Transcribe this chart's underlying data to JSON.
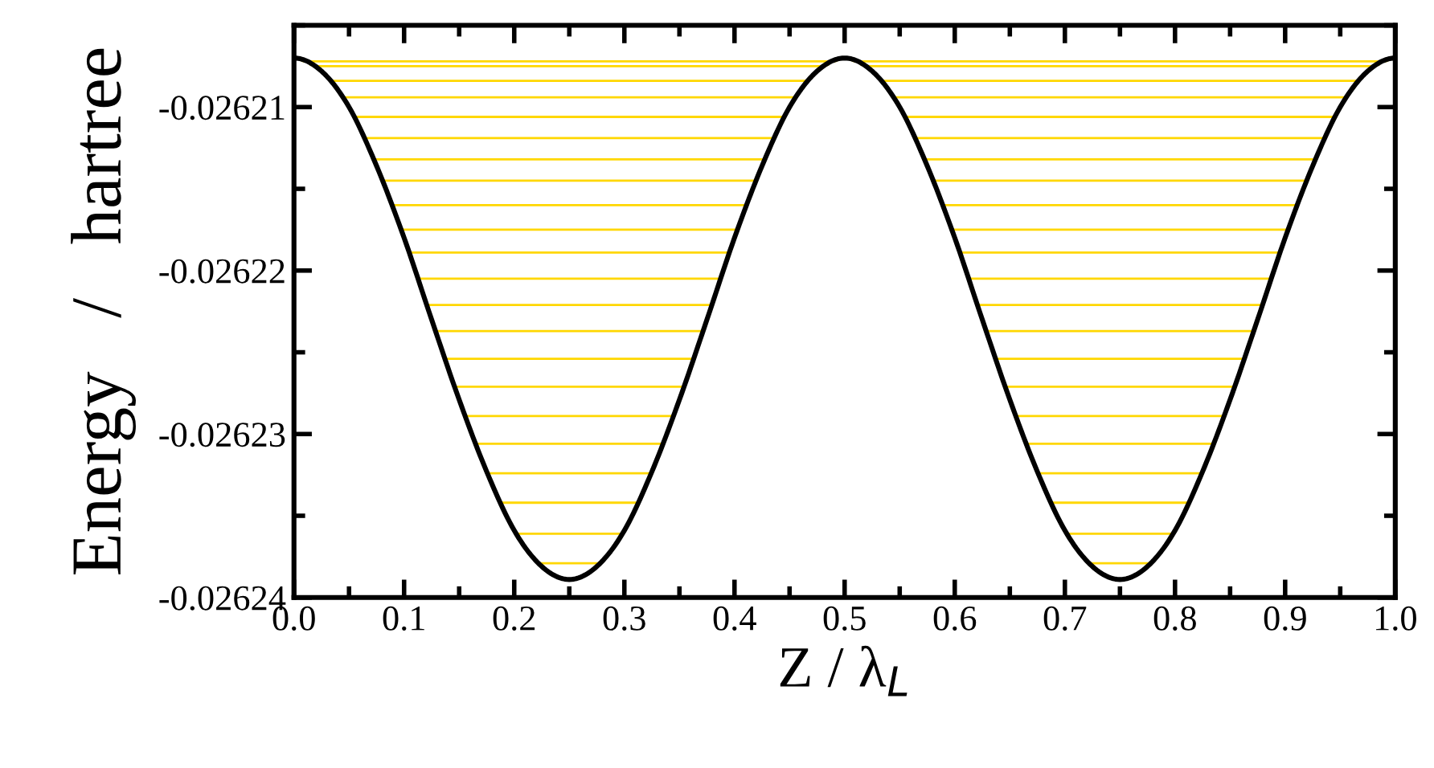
{
  "chart_data": {
    "type": "line",
    "xlabel": "Z / λ$_{L}$",
    "ylabel": "Energy   /   hartree",
    "x": [
      0.0,
      0.025,
      0.05,
      0.075,
      0.1,
      0.125,
      0.15,
      0.175,
      0.2,
      0.225,
      0.25,
      0.275,
      0.3,
      0.325,
      0.35,
      0.375,
      0.4,
      0.425,
      0.45,
      0.475,
      0.5,
      0.525,
      0.55,
      0.575,
      0.6,
      0.625,
      0.65,
      0.675,
      0.7,
      0.725,
      0.75,
      0.775,
      0.8,
      0.825,
      0.85,
      0.875,
      0.9,
      0.925,
      0.95,
      0.975,
      1.0
    ],
    "series": [
      {
        "color": "#000000",
        "values": [
          -0.026207,
          -0.0262078,
          -0.02621,
          -0.0262136,
          -0.026218,
          -0.026223,
          -0.0262279,
          -0.0262323,
          -0.0262359,
          -0.0262381,
          -0.0262389,
          -0.0262381,
          -0.0262359,
          -0.0262323,
          -0.0262279,
          -0.026223,
          -0.026218,
          -0.0262136,
          -0.02621,
          -0.0262078,
          -0.026207,
          -0.0262078,
          -0.02621,
          -0.0262136,
          -0.026218,
          -0.026223,
          -0.0262279,
          -0.0262323,
          -0.0262359,
          -0.0262381,
          -0.0262389,
          -0.0262381,
          -0.0262359,
          -0.0262323,
          -0.0262279,
          -0.026223,
          -0.026218,
          -0.0262136,
          -0.02621,
          -0.0262078,
          -0.026207
        ]
      }
    ],
    "ref_lines": [
      {
        "axis": "y",
        "value": -0.0262072,
        "color": "#ffd700"
      },
      {
        "axis": "y",
        "value": -0.0262075,
        "color": "#ffd700"
      },
      {
        "axis": "y",
        "value": -0.0262084,
        "color": "#ffd700"
      },
      {
        "axis": "y",
        "value": -0.0262094,
        "color": "#ffd700"
      },
      {
        "axis": "y",
        "value": -0.0262106,
        "color": "#ffd700"
      },
      {
        "axis": "y",
        "value": -0.0262119,
        "color": "#ffd700"
      },
      {
        "axis": "y",
        "value": -0.0262132,
        "color": "#ffd700"
      },
      {
        "axis": "y",
        "value": -0.0262145,
        "color": "#ffd700"
      },
      {
        "axis": "y",
        "value": -0.026216,
        "color": "#ffd700"
      },
      {
        "axis": "y",
        "value": -0.0262175,
        "color": "#ffd700"
      },
      {
        "axis": "y",
        "value": -0.0262189,
        "color": "#ffd700"
      },
      {
        "axis": "y",
        "value": -0.0262205,
        "color": "#ffd700"
      },
      {
        "axis": "y",
        "value": -0.0262221,
        "color": "#ffd700"
      },
      {
        "axis": "y",
        "value": -0.0262237,
        "color": "#ffd700"
      },
      {
        "axis": "y",
        "value": -0.0262254,
        "color": "#ffd700"
      },
      {
        "axis": "y",
        "value": -0.0262271,
        "color": "#ffd700"
      },
      {
        "axis": "y",
        "value": -0.0262289,
        "color": "#ffd700"
      },
      {
        "axis": "y",
        "value": -0.0262306,
        "color": "#ffd700"
      },
      {
        "axis": "y",
        "value": -0.0262324,
        "color": "#ffd700"
      },
      {
        "axis": "y",
        "value": -0.0262342,
        "color": "#ffd700"
      },
      {
        "axis": "y",
        "value": -0.0262361,
        "color": "#ffd700"
      },
      {
        "axis": "y",
        "value": -0.0262379,
        "color": "#ffd700"
      }
    ],
    "xlim": [
      0.0,
      1.0
    ],
    "xticks": [
      {
        "value": 0.0,
        "label": "0.0"
      },
      0.1,
      0.2,
      0.3,
      0.4,
      0.5,
      0.6,
      0.7,
      0.8,
      0.9,
      {
        "value": 1.0,
        "label": "1.0"
      }
    ],
    "ylim": [
      -0.02624,
      -0.026205
    ],
    "yticks": [
      -0.02624,
      -0.02623,
      -0.02622,
      -0.02621
    ],
    "grid": false,
    "legend": false,
    "marker": "none",
    "line_style": "solid"
  }
}
